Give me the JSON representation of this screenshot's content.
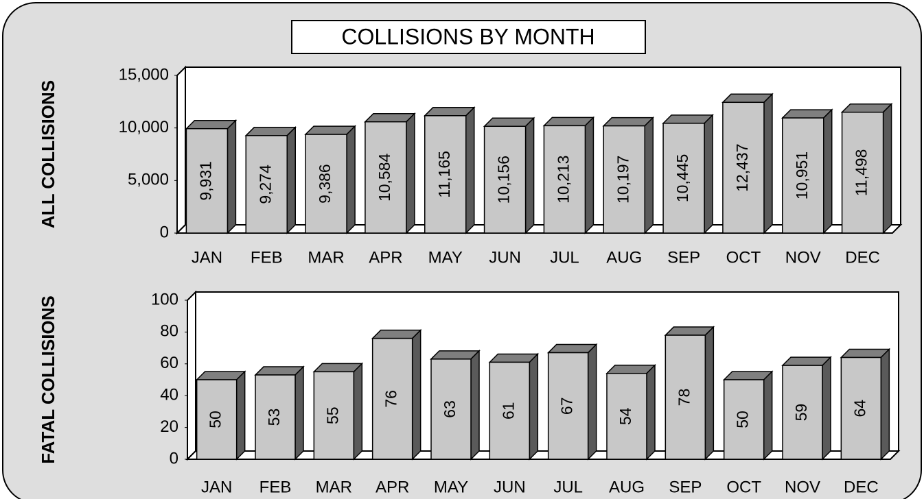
{
  "title": "COLLISIONS BY MONTH",
  "chart_data": [
    {
      "type": "bar",
      "ylabel": "ALL COLLISIONS",
      "categories": [
        "JAN",
        "FEB",
        "MAR",
        "APR",
        "MAY",
        "JUN",
        "JUL",
        "AUG",
        "SEP",
        "OCT",
        "NOV",
        "DEC"
      ],
      "values": [
        9931,
        9274,
        9386,
        10584,
        11165,
        10156,
        10213,
        10197,
        10445,
        12437,
        10951,
        11498
      ],
      "value_labels": [
        "9,931",
        "9,274",
        "9,386",
        "10,584",
        "11,165",
        "10,156",
        "10,213",
        "10,197",
        "10,445",
        "12,437",
        "10,951",
        "11,498"
      ],
      "color": "#c8c8c8",
      "ylim": [
        0,
        15000
      ],
      "yticks": [
        0,
        {
          "value": 5000,
          "label": "5,000"
        },
        {
          "value": 10000,
          "label": "10,000"
        },
        {
          "value": 15000,
          "label": "15,000"
        }
      ]
    },
    {
      "type": "bar",
      "ylabel": "FATAL COLLISIONS",
      "categories": [
        "JAN",
        "FEB",
        "MAR",
        "APR",
        "MAY",
        "JUN",
        "JUL",
        "AUG",
        "SEP",
        "OCT",
        "NOV",
        "DEC"
      ],
      "values": [
        50,
        53,
        55,
        76,
        63,
        61,
        67,
        54,
        78,
        50,
        59,
        64
      ],
      "color": "#c8c8c8",
      "ylim": [
        0,
        100
      ],
      "yticks": [
        0,
        20,
        40,
        60,
        80,
        100
      ]
    }
  ]
}
